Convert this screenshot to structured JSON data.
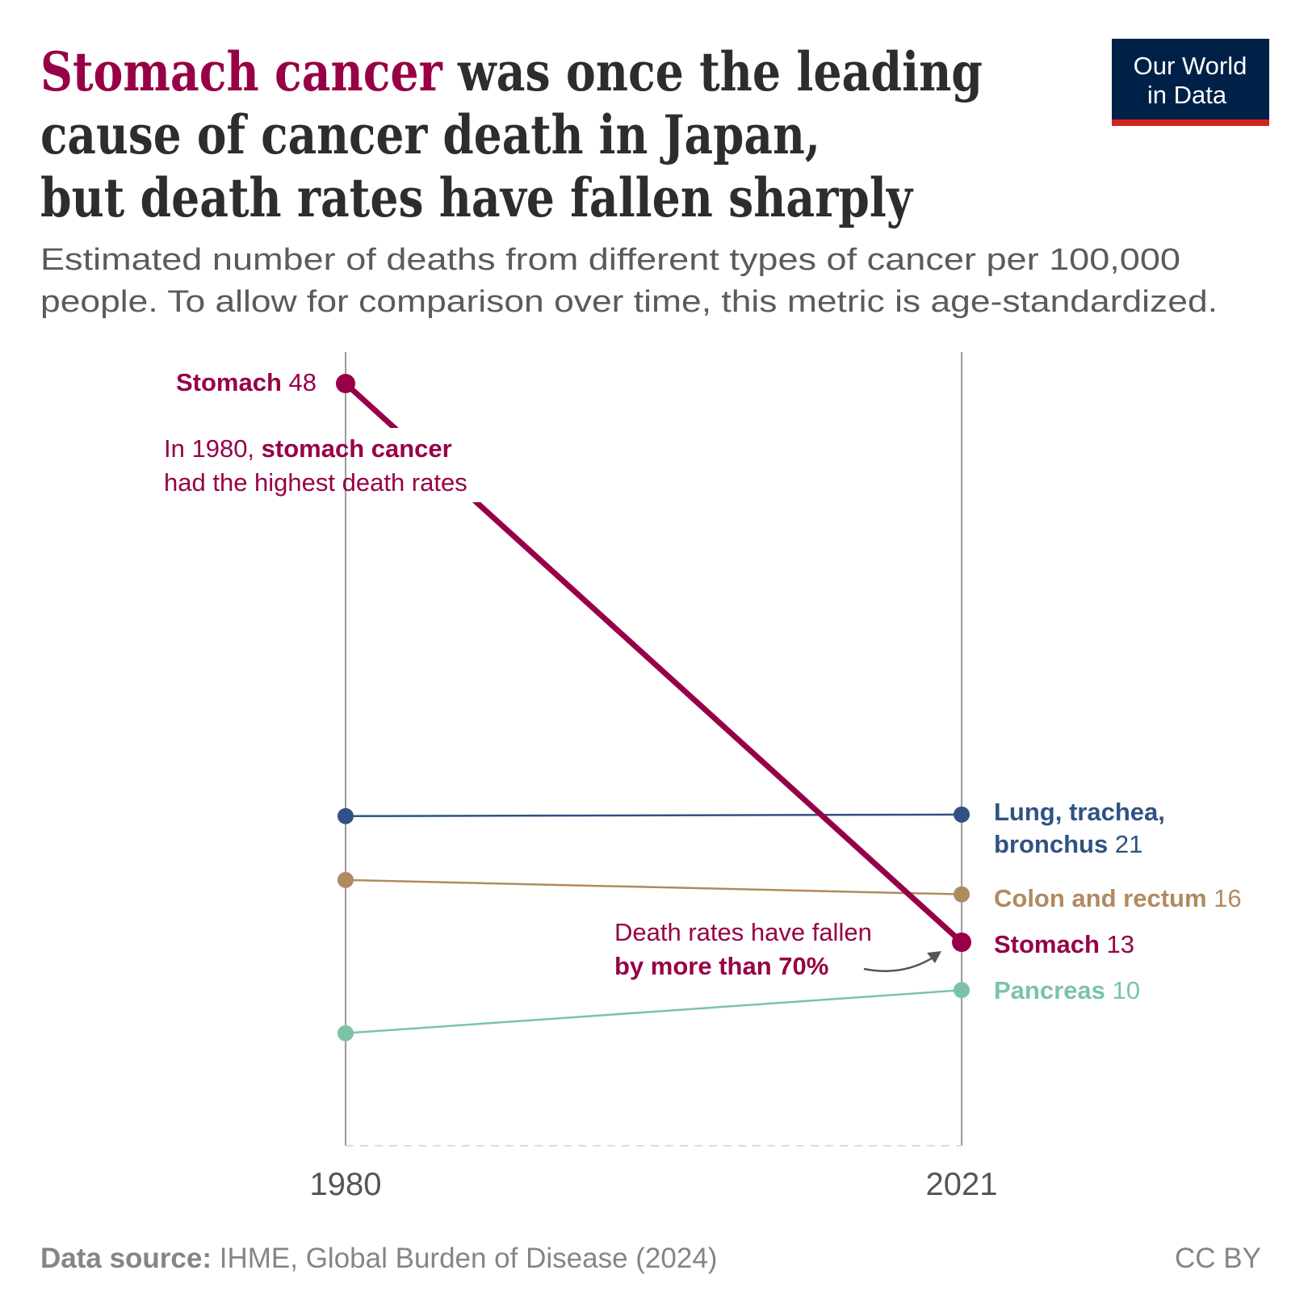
{
  "title": {
    "highlight": "Stomach cancer",
    "line1_rest": " was once the leading",
    "line2": "cause of cancer death in Japan,",
    "line3": "but death rates have fallen sharply"
  },
  "subtitle": {
    "line1": "Estimated number of deaths from different types of cancer per 100,000",
    "line2": "people. To allow for comparison over time, this metric is age-standardized."
  },
  "logo": {
    "line1": "Our World",
    "line2": "in Data"
  },
  "footer": {
    "source_label": "Data source:",
    "source_text": " IHME, Global Burden of Disease (2024)",
    "license": "CC BY"
  },
  "annotations": {
    "a1_line1_pre": "In 1980, ",
    "a1_line1_bold": "stomach cancer",
    "a1_line2": "had the highest death rates",
    "a2_line1": "Death rates have fallen",
    "a2_line2": "by more than 70%"
  },
  "colors": {
    "stomach": "#970046",
    "lung": "#2f5283",
    "colon": "#b08a5f",
    "pancreas": "#7cc3a5",
    "axis": "#9a9a9a",
    "title": "#2d2d2d",
    "subtitle": "#5b5b5b"
  },
  "chart_data": {
    "type": "line",
    "subtype": "slope",
    "x": [
      "1980",
      "2021"
    ],
    "ylim": [
      0,
      48
    ],
    "grid": false,
    "series": [
      {
        "name": "Stomach",
        "values": [
          48,
          13
        ],
        "start_label": "48",
        "end_label": "13"
      },
      {
        "name": "Lung, trachea, bronchus",
        "name_line1": "Lung, trachea,",
        "name_line2": "bronchus",
        "values": [
          20.9,
          21
        ],
        "end_label": "21"
      },
      {
        "name": "Colon and rectum",
        "values": [
          16.9,
          16
        ],
        "end_label": "16"
      },
      {
        "name": "Pancreas",
        "values": [
          7.3,
          10
        ],
        "end_label": "10"
      }
    ]
  }
}
